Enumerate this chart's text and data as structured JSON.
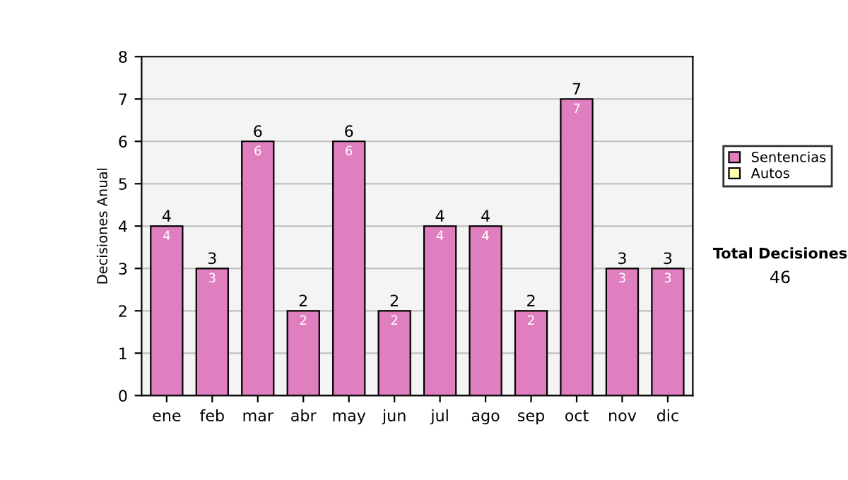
{
  "chart_data": {
    "type": "bar",
    "ylabel": "Decisiones Anual",
    "categories": [
      "ene",
      "feb",
      "mar",
      "abr",
      "may",
      "jun",
      "jul",
      "ago",
      "sep",
      "oct",
      "nov",
      "dic"
    ],
    "series": [
      {
        "name": "Sentencias",
        "color": "#e07fc0",
        "values": [
          4,
          3,
          6,
          2,
          6,
          2,
          4,
          4,
          2,
          7,
          3,
          3
        ],
        "value_labels": [
          "4",
          "3",
          "6",
          "2",
          "6",
          "2",
          "4",
          "4",
          "2",
          "7",
          "3",
          "3"
        ]
      },
      {
        "name": "Autos",
        "color": "#ffffb0",
        "values": [
          0,
          0,
          0,
          0,
          0,
          0,
          0,
          0,
          0,
          0,
          0,
          0
        ],
        "value_labels": [
          null,
          null,
          null,
          null,
          null,
          null,
          null,
          null,
          null,
          null,
          null,
          null
        ]
      }
    ],
    "stacked": true,
    "totals": [
      "4",
      "3",
      "6",
      "2",
      "6",
      "2",
      "4",
      "4",
      "2",
      "7",
      "3",
      "3"
    ],
    "ylim": [
      0,
      8
    ],
    "yticks": [
      0,
      1,
      2,
      3,
      4,
      5,
      6,
      7,
      8
    ],
    "grid": "y",
    "legend": "right",
    "annotations": [
      "Total Decisiones",
      "46"
    ]
  }
}
